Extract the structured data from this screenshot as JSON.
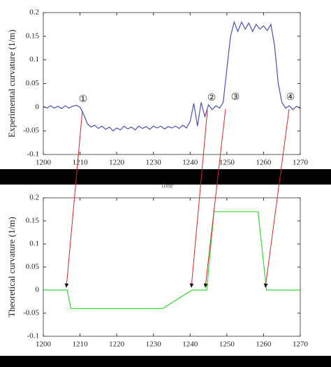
{
  "chart_data": [
    {
      "type": "line",
      "ylabel": "Experimental curvature (1/m)",
      "xlabel": "time",
      "color": "#4a4fb8",
      "xlim": [
        1200,
        1270
      ],
      "xticks": [
        1200,
        1210,
        1220,
        1230,
        1240,
        1250,
        1260,
        1270
      ],
      "ylim": [
        -0.1,
        0.2
      ],
      "yticks": [
        -0.1,
        -0.05,
        0,
        0.05,
        0.1,
        0.15,
        0.2
      ],
      "annotations": [
        "①",
        "②",
        "③",
        "④"
      ],
      "x": [
        1200,
        1201,
        1202,
        1203,
        1204,
        1205,
        1206,
        1207,
        1208,
        1209,
        1210,
        1211,
        1212,
        1213,
        1214,
        1215,
        1216,
        1217,
        1218,
        1219,
        1220,
        1221,
        1222,
        1223,
        1224,
        1225,
        1226,
        1227,
        1228,
        1229,
        1230,
        1231,
        1232,
        1233,
        1234,
        1235,
        1236,
        1237,
        1238,
        1239,
        1240,
        1241,
        1242,
        1243,
        1244,
        1245,
        1246,
        1247,
        1248,
        1249,
        1250,
        1251,
        1252,
        1253,
        1254,
        1255,
        1256,
        1257,
        1258,
        1259,
        1260,
        1261,
        1262,
        1263,
        1264,
        1265,
        1266,
        1267,
        1268,
        1269,
        1270
      ],
      "values": [
        0.002,
        -0.002,
        0.003,
        -0.002,
        0.002,
        -0.003,
        0.003,
        -0.002,
        0.002,
        0.004,
        0.0,
        -0.015,
        -0.035,
        -0.042,
        -0.038,
        -0.045,
        -0.04,
        -0.047,
        -0.042,
        -0.05,
        -0.044,
        -0.048,
        -0.04,
        -0.046,
        -0.042,
        -0.048,
        -0.04,
        -0.045,
        -0.041,
        -0.047,
        -0.04,
        -0.044,
        -0.04,
        -0.046,
        -0.041,
        -0.044,
        -0.04,
        -0.045,
        -0.038,
        -0.044,
        -0.03,
        0.008,
        -0.04,
        0.01,
        -0.02,
        0.005,
        -0.005,
        0.003,
        -0.002,
        0.01,
        0.08,
        0.15,
        0.18,
        0.16,
        0.18,
        0.165,
        0.178,
        0.16,
        0.175,
        0.165,
        0.172,
        0.162,
        0.175,
        0.13,
        0.05,
        0.01,
        -0.002,
        0.003,
        -0.005,
        0.002,
        -0.003
      ]
    },
    {
      "type": "line",
      "ylabel": "Theoretical curvature (1/m)",
      "color": "#33dd33",
      "xlim": [
        1200,
        1270
      ],
      "xticks": [
        1200,
        1210,
        1220,
        1230,
        1240,
        1250,
        1260,
        1270
      ],
      "ylim": [
        -0.1,
        0.2
      ],
      "yticks": [
        -0.1,
        -0.05,
        0,
        0.05,
        0.1,
        0.15,
        0.2
      ],
      "x": [
        1200,
        1206.5,
        1207.5,
        1232.5,
        1240.5,
        1244.5,
        1246.5,
        1258.5,
        1260.8,
        1270
      ],
      "values": [
        0,
        0,
        -0.04,
        -0.04,
        0,
        0,
        0.17,
        0.17,
        0,
        0
      ]
    }
  ]
}
